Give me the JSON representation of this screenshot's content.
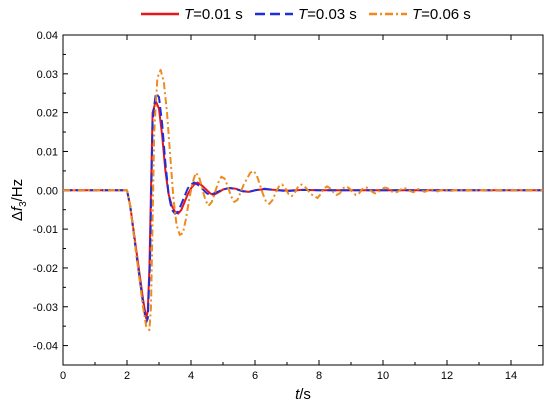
{
  "chart_data": {
    "type": "line",
    "xlabel_var": "t",
    "xlabel_unit": "/s",
    "ylabel_prefix": "Δ",
    "ylabel_var": "f",
    "ylabel_sub": "3",
    "ylabel_unit": "/Hz",
    "xlim": [
      0,
      15
    ],
    "ylim": [
      -0.045,
      0.04
    ],
    "xticks": [
      0,
      2,
      4,
      6,
      8,
      10,
      12,
      14
    ],
    "xtick_labels": [
      "0",
      "2",
      "4",
      "6",
      "8",
      "10",
      "12",
      "14"
    ],
    "yticks": [
      -0.04,
      -0.03,
      -0.02,
      -0.01,
      0.0,
      0.01,
      0.02,
      0.03,
      0.04
    ],
    "ytick_labels": [
      "-0.04",
      "-0.03",
      "-0.02",
      "-0.01",
      "0.00",
      "0.01",
      "0.02",
      "0.03",
      "0.04"
    ],
    "grid": false,
    "legend_position": "top",
    "series": [
      {
        "name": "T=0.01 s",
        "legend_var": "T",
        "legend_rest": "=0.01 s",
        "color": "#e8161b",
        "dash": "solid",
        "x": [
          0,
          2.0,
          2.1,
          2.3,
          2.5,
          2.6,
          2.65,
          2.7,
          2.8,
          2.9,
          3.0,
          3.1,
          3.2,
          3.3,
          3.4,
          3.5,
          3.6,
          3.7,
          3.8,
          3.9,
          4.0,
          4.1,
          4.2,
          4.3,
          4.4,
          4.5,
          4.6,
          4.7,
          4.8,
          4.9,
          5.0,
          5.2,
          5.4,
          5.6,
          5.8,
          6.0,
          6.3,
          6.6,
          7.0,
          7.5,
          8.0,
          9.0,
          10.0,
          12.0,
          15.0
        ],
        "y": [
          0,
          0,
          -0.004,
          -0.016,
          -0.028,
          -0.033,
          -0.031,
          -0.02,
          0.02,
          0.023,
          0.021,
          0.014,
          0.005,
          -0.001,
          -0.004,
          -0.0055,
          -0.006,
          -0.005,
          -0.003,
          -0.001,
          0.0005,
          0.0015,
          0.002,
          0.0015,
          0.0008,
          0.0,
          -0.0008,
          -0.0012,
          -0.0008,
          -0.0003,
          0.0002,
          0.0006,
          0.0004,
          -0.0002,
          -0.0004,
          0.0,
          0.0003,
          0.0001,
          -0.0001,
          0.0001,
          0.0,
          0.0,
          0.0,
          0.0,
          0.0
        ]
      },
      {
        "name": "T=0.03 s",
        "legend_var": "T",
        "legend_rest": "=0.03 s",
        "color": "#1f2fd8",
        "dash": "dashed",
        "x": [
          0,
          2.0,
          2.1,
          2.3,
          2.5,
          2.6,
          2.65,
          2.72,
          2.8,
          2.9,
          3.0,
          3.1,
          3.2,
          3.3,
          3.4,
          3.5,
          3.6,
          3.7,
          3.8,
          3.9,
          4.0,
          4.1,
          4.2,
          4.3,
          4.4,
          4.5,
          4.6,
          4.8,
          5.0,
          5.2,
          5.4,
          5.6,
          5.8,
          6.0,
          6.3,
          6.6,
          7.0,
          7.5,
          8.0,
          9.0,
          10.0,
          12.0,
          15.0
        ],
        "y": [
          0,
          0,
          -0.004,
          -0.017,
          -0.029,
          -0.034,
          -0.033,
          -0.018,
          0.018,
          0.025,
          0.024,
          0.017,
          0.007,
          -0.001,
          -0.005,
          -0.006,
          -0.0055,
          -0.0035,
          -0.0015,
          0.0005,
          0.0015,
          0.002,
          0.0015,
          0.0008,
          0.0,
          -0.0008,
          -0.0012,
          -0.0005,
          0.0002,
          0.0006,
          0.0003,
          -0.0002,
          -0.0004,
          0.0,
          0.0004,
          0.0001,
          -0.0002,
          0.0001,
          0.0,
          0.0,
          0.0,
          0.0,
          0.0
        ]
      },
      {
        "name": "T=0.06 s",
        "legend_var": "T",
        "legend_rest": "=0.06 s",
        "color": "#f08a1e",
        "dash": "dashdot",
        "x": [
          0,
          2.0,
          2.1,
          2.3,
          2.5,
          2.6,
          2.7,
          2.75,
          2.85,
          2.95,
          3.05,
          3.15,
          3.25,
          3.35,
          3.45,
          3.55,
          3.65,
          3.75,
          3.85,
          3.95,
          4.05,
          4.15,
          4.25,
          4.35,
          4.45,
          4.55,
          4.65,
          4.75,
          4.85,
          4.95,
          5.05,
          5.15,
          5.25,
          5.35,
          5.45,
          5.55,
          5.65,
          5.75,
          5.85,
          5.95,
          6.05,
          6.15,
          6.25,
          6.35,
          6.45,
          6.55,
          6.65,
          6.75,
          6.85,
          6.95,
          7.05,
          7.15,
          7.25,
          7.35,
          7.45,
          7.55,
          7.65,
          7.75,
          7.85,
          7.95,
          8.05,
          8.15,
          8.25,
          8.35,
          8.45,
          8.55,
          8.65,
          8.75,
          8.85,
          8.95,
          9.05,
          9.15,
          9.25,
          9.35,
          9.45,
          9.55,
          9.65,
          9.75,
          9.85,
          9.95,
          10.05,
          10.15,
          10.25,
          10.35,
          10.45,
          10.55,
          10.65,
          10.75,
          10.85,
          10.95,
          11.1,
          11.3,
          11.5,
          11.7,
          11.9,
          12.1,
          12.3,
          12.6,
          13.0,
          13.5,
          14.0,
          14.5,
          15.0
        ],
        "y": [
          0,
          0,
          -0.004,
          -0.017,
          -0.03,
          -0.035,
          -0.036,
          -0.03,
          0.015,
          0.029,
          0.031,
          0.028,
          0.02,
          0.009,
          -0.002,
          -0.009,
          -0.0115,
          -0.011,
          -0.007,
          -0.002,
          0.002,
          0.0045,
          0.0035,
          0.0005,
          -0.0025,
          -0.004,
          -0.003,
          -0.0005,
          0.002,
          0.0035,
          0.003,
          0.001,
          -0.0015,
          -0.003,
          -0.0025,
          -0.0005,
          0.0015,
          0.003,
          0.0045,
          0.005,
          0.004,
          0.0015,
          -0.001,
          -0.003,
          -0.0035,
          -0.0025,
          -0.0005,
          0.001,
          0.0015,
          0.0005,
          -0.001,
          -0.0015,
          -0.0005,
          0.001,
          0.0015,
          0.001,
          0.0,
          -0.001,
          -0.0015,
          -0.002,
          -0.001,
          0.0005,
          0.001,
          0.0005,
          -0.0005,
          -0.0012,
          -0.0008,
          0.0005,
          0.001,
          0.0005,
          -0.0005,
          -0.0012,
          -0.0008,
          0.0003,
          0.0008,
          0.0005,
          -0.0003,
          -0.0008,
          -0.0005,
          0.0002,
          0.0007,
          0.0005,
          -0.0002,
          -0.0006,
          -0.0004,
          0.0002,
          0.0006,
          0.0004,
          -0.0002,
          -0.0005,
          0.0003,
          -0.0004,
          0.0003,
          -0.0003,
          0.0002,
          -0.0002,
          0.0001,
          -0.0001,
          0.0,
          0.0001,
          0.0,
          0.0,
          0.0
        ]
      }
    ]
  }
}
